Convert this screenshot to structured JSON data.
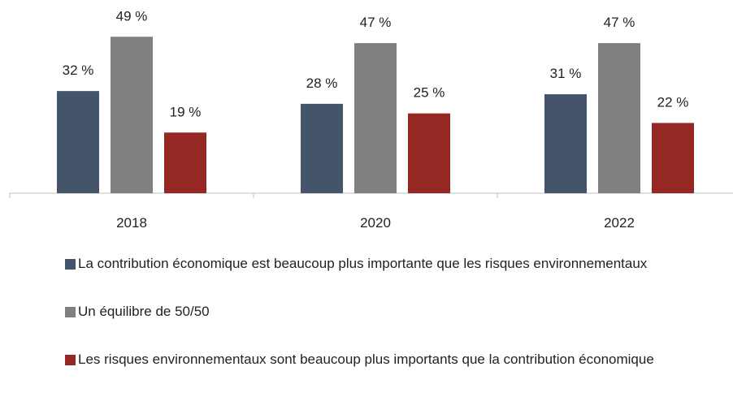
{
  "chart_data": {
    "type": "bar",
    "categories": [
      "2018",
      "2020",
      "2022"
    ],
    "series": [
      {
        "name": "La contribution économique est beaucoup plus importante que les risques environnementaux",
        "color": "#44546a",
        "values": [
          32,
          28,
          31
        ],
        "value_labels": [
          "32 %",
          "28 %",
          "31 %"
        ]
      },
      {
        "name": "Un équilibre de 50/50",
        "color": "#7f7f7f",
        "values": [
          49,
          47,
          47
        ],
        "value_labels": [
          "49 %",
          "47 %",
          "47 %"
        ]
      },
      {
        "name": "Les risques environnementaux sont beaucoup plus importants que la contribution économique",
        "color": "#962823",
        "values": [
          19,
          25,
          22
        ],
        "value_labels": [
          "19 %",
          "25 %",
          "22 %"
        ]
      }
    ],
    "ylim": [
      0,
      60
    ]
  }
}
